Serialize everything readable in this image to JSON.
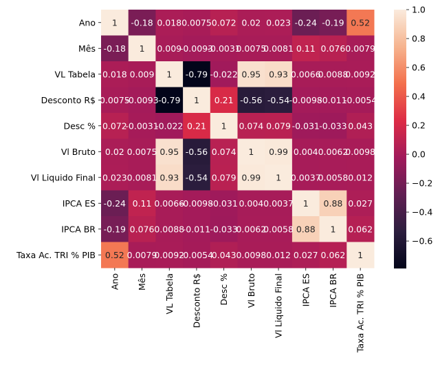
{
  "chart_data": {
    "type": "heatmap",
    "title": "",
    "xlabel": "",
    "ylabel": "",
    "labels": [
      "Ano",
      "Mês",
      "VL Tabela",
      "Desconto R$",
      "Desc %",
      "Vl Bruto",
      "Vl Liquido Final",
      "IPCA ES",
      "IPCA BR",
      "Taxa Ac. TRI % PIB"
    ],
    "values": [
      [
        1,
        -0.18,
        0.018,
        0.0075,
        0.072,
        0.02,
        0.023,
        -0.24,
        -0.19,
        0.52
      ],
      [
        -0.18,
        1,
        0.009,
        -0.0093,
        -0.0031,
        0.0075,
        0.0081,
        0.11,
        0.076,
        0.0079
      ],
      [
        0.018,
        0.009,
        1,
        -0.79,
        -0.022,
        0.95,
        0.93,
        0.0066,
        0.0088,
        0.0092
      ],
      [
        0.0075,
        -0.0093,
        -0.79,
        1,
        0.21,
        -0.56,
        -0.54,
        -0.0098,
        -0.011,
        -0.0054
      ],
      [
        0.072,
        -0.0031,
        -0.022,
        0.21,
        1,
        0.074,
        0.079,
        -0.031,
        -0.033,
        0.043
      ],
      [
        0.02,
        0.0075,
        0.95,
        -0.56,
        0.074,
        1,
        0.99,
        0.004,
        0.0062,
        0.0098
      ],
      [
        0.023,
        0.0081,
        0.93,
        -0.54,
        0.079,
        0.99,
        1,
        0.0037,
        0.0058,
        0.012
      ],
      [
        -0.24,
        0.11,
        0.0066,
        -0.0098,
        -0.031,
        0.004,
        0.0037,
        1,
        0.88,
        0.027
      ],
      [
        -0.19,
        0.076,
        0.0088,
        -0.011,
        -0.033,
        0.0062,
        0.0058,
        0.88,
        1,
        0.062
      ],
      [
        0.52,
        0.0079,
        0.0092,
        -0.0054,
        0.043,
        0.0098,
        0.012,
        0.027,
        0.062,
        1
      ]
    ],
    "cell_text": [
      [
        "1",
        "-0.18",
        "0.018",
        "0.0075",
        "0.072",
        "0.02",
        "0.023",
        "-0.24",
        "-0.19",
        "0.52"
      ],
      [
        "-0.18",
        "1",
        "0.009",
        "-0.0093",
        "-0.0031",
        "0.0075",
        "0.0081",
        "0.11",
        "0.076",
        "0.0079"
      ],
      [
        "0.018",
        "0.009",
        "1",
        "-0.79",
        "-0.022",
        "0.95",
        "0.93",
        "0.0066",
        "0.0088",
        "0.0092"
      ],
      [
        "0.0075",
        "-0.0093",
        "-0.79",
        "1",
        "0.21",
        "-0.56",
        "-0.54",
        "-0.0098",
        "-0.011",
        "-0.0054"
      ],
      [
        "0.072",
        "-0.0031",
        "-0.022",
        "0.21",
        "1",
        "0.074",
        "0.079",
        "-0.031",
        "-0.033",
        "0.043"
      ],
      [
        "0.02",
        "0.0075",
        "0.95",
        "-0.56",
        "0.074",
        "1",
        "0.99",
        "0.004",
        "0.0062",
        "0.0098"
      ],
      [
        "0.023",
        "0.0081",
        "0.93",
        "-0.54",
        "0.079",
        "0.99",
        "1",
        "0.0037",
        "0.0058",
        "0.012"
      ],
      [
        "-0.24",
        "0.11",
        "0.0066",
        "-0.0098",
        "-0.031",
        "0.004",
        "0.0037",
        "1",
        "0.88",
        "0.027"
      ],
      [
        "-0.19",
        "0.076",
        "0.0088",
        "-0.011",
        "-0.033",
        "0.0062",
        "0.0058",
        "0.88",
        "1",
        "0.062"
      ],
      [
        "0.52",
        "0.0079",
        "0.0092",
        "-0.0054",
        "0.043",
        "0.0098",
        "0.012",
        "0.027",
        "0.062",
        "1"
      ]
    ],
    "colorbar": {
      "range": [
        -0.79,
        1
      ],
      "ticks": [
        -0.6,
        -0.4,
        -0.2,
        0.0,
        0.2,
        0.4,
        0.6,
        0.8,
        1.0
      ],
      "tick_labels": [
        "−0.6",
        "−0.4",
        "−0.2",
        "0.0",
        "0.2",
        "0.4",
        "0.6",
        "0.8",
        "1.0"
      ],
      "colormap": "rocket",
      "colormap_stops": [
        "#03051a",
        "#2c1e3e",
        "#611f53",
        "#a11a5b",
        "#dd2c45",
        "#f3704c",
        "#f6b48f",
        "#faebdd"
      ]
    },
    "annot_color_light": "#ffffff",
    "annot_color_dark": "#262626",
    "grid": false,
    "legend": "colorbar-right"
  }
}
